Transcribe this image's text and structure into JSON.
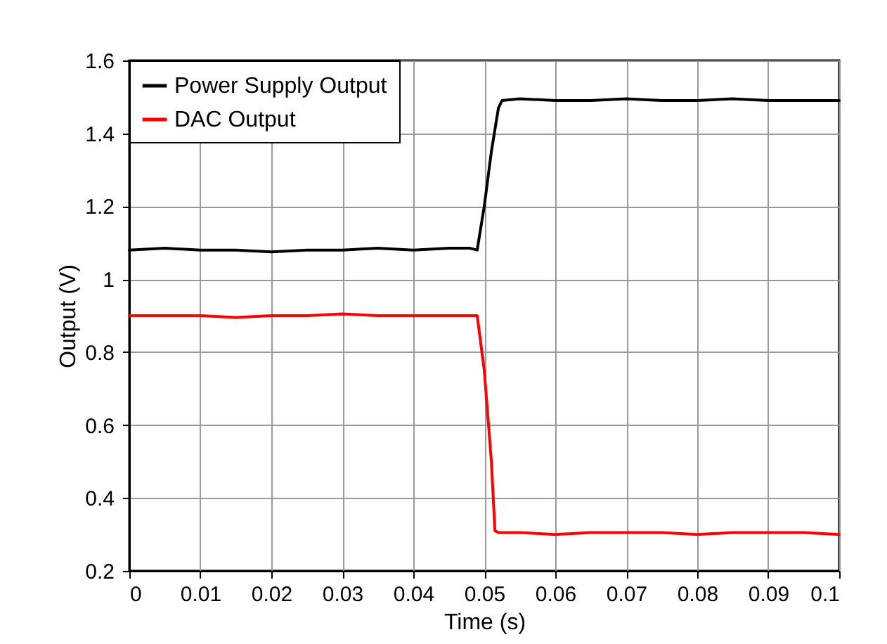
{
  "chart_data": {
    "type": "line",
    "xlabel": "Time (s)",
    "ylabel": "Output (V)",
    "xlim": [
      0,
      0.1
    ],
    "xticks": [
      0,
      0.01,
      0.02,
      0.03,
      0.04,
      0.05,
      0.06,
      0.07,
      0.08,
      0.09,
      0.1
    ],
    "ylim": [
      0.2,
      1.6
    ],
    "yticks": [
      0.2,
      0.4,
      0.6,
      0.8,
      1,
      1.2,
      1.4,
      1.6
    ],
    "grid": true,
    "legend": "top left",
    "line_style": "solid",
    "series": [
      {
        "name": "Power Supply Output",
        "color": "#000000",
        "x": [
          0,
          0.005,
          0.01,
          0.015,
          0.02,
          0.025,
          0.03,
          0.035,
          0.04,
          0.045,
          0.048,
          0.049,
          0.05,
          0.051,
          0.052,
          0.0525,
          0.055,
          0.06,
          0.065,
          0.07,
          0.075,
          0.08,
          0.085,
          0.09,
          0.095,
          0.1
        ],
        "values": [
          1.08,
          1.085,
          1.08,
          1.08,
          1.075,
          1.08,
          1.08,
          1.085,
          1.08,
          1.085,
          1.085,
          1.08,
          1.2,
          1.35,
          1.47,
          1.49,
          1.495,
          1.49,
          1.49,
          1.495,
          1.49,
          1.49,
          1.495,
          1.49,
          1.49,
          1.49
        ]
      },
      {
        "name": "DAC Output",
        "color": "#ff0000",
        "x": [
          0,
          0.005,
          0.01,
          0.015,
          0.02,
          0.025,
          0.03,
          0.035,
          0.04,
          0.045,
          0.048,
          0.049,
          0.05,
          0.051,
          0.0515,
          0.052,
          0.055,
          0.06,
          0.065,
          0.07,
          0.075,
          0.08,
          0.085,
          0.09,
          0.095,
          0.1
        ],
        "values": [
          0.9,
          0.9,
          0.9,
          0.895,
          0.9,
          0.9,
          0.905,
          0.9,
          0.9,
          0.9,
          0.9,
          0.9,
          0.75,
          0.5,
          0.31,
          0.305,
          0.305,
          0.3,
          0.305,
          0.305,
          0.305,
          0.3,
          0.305,
          0.305,
          0.305,
          0.3
        ]
      }
    ]
  }
}
